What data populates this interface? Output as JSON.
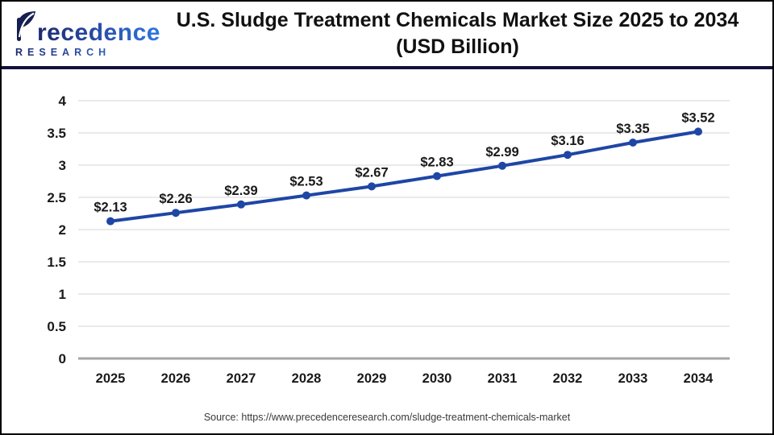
{
  "header": {
    "logo": {
      "brand_name": "Precedence",
      "brand_rest": "recedence",
      "subtitle": "RESEARCH"
    },
    "title_line1": "U.S. Sludge Treatment Chemicals Market Size 2025 to 2034",
    "title_line2": "(USD Billion)"
  },
  "chart_data": {
    "type": "line",
    "title": "U.S. Sludge Treatment Chemicals Market Size 2025 to 2034 (USD Billion)",
    "categories": [
      "2025",
      "2026",
      "2027",
      "2028",
      "2029",
      "2030",
      "2031",
      "2032",
      "2033",
      "2034"
    ],
    "values": [
      2.13,
      2.26,
      2.39,
      2.53,
      2.67,
      2.83,
      2.99,
      3.16,
      3.35,
      3.52
    ],
    "point_labels": [
      "$2.13",
      "$2.26",
      "$2.39",
      "$2.53",
      "$2.67",
      "$2.83",
      "$2.99",
      "$3.16",
      "$3.35",
      "$3.52"
    ],
    "xlabel": "",
    "ylabel": "",
    "ylim": [
      0,
      4
    ],
    "yticks": [
      0,
      0.5,
      1,
      1.5,
      2,
      2.5,
      3,
      3.5,
      4
    ],
    "grid": true,
    "legend": "none",
    "line_color": "#1e46a5",
    "marker_color": "#1e46a5",
    "grid_color": "#e3e3e3",
    "axis_color": "#a6a6a6",
    "label_color": "#1a1a1a"
  },
  "colors": {
    "separator_navy": "#10123a",
    "logo_navy": "#161f52",
    "logo_blue": "#2e77e0",
    "frame_border": "#000000"
  },
  "footer": {
    "source": "Source: https://www.precedenceresearch.com/sludge-treatment-chemicals-market"
  }
}
